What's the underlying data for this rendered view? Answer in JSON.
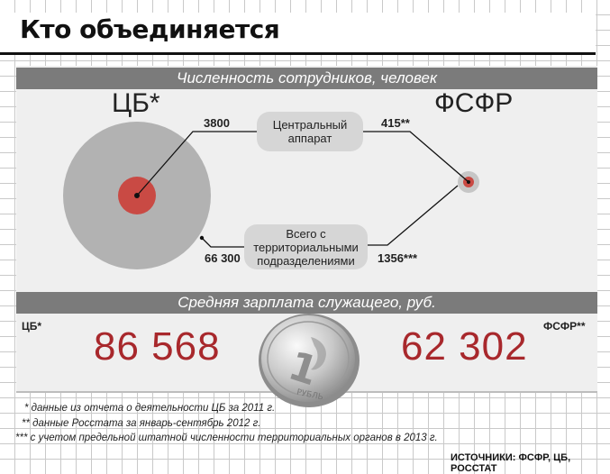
{
  "title": "Кто объединяется",
  "section1": {
    "header": "Численность сотрудников, человек",
    "left_label": "ЦБ*",
    "right_label": "ФСФР",
    "central": {
      "label": "Центральный аппарат",
      "left_value": "3800",
      "right_value": "415**"
    },
    "total": {
      "label": "Всего с территориальными подразделениями",
      "left_value": "66 300",
      "right_value": "1356***"
    }
  },
  "section2": {
    "header": "Средняя зарплата служащего, руб.",
    "left_label": "ЦБ*",
    "left_value": "86 568",
    "right_label": "ФСФР**",
    "right_value": "62 302",
    "coin": {
      "value": "1",
      "text": "РУБЛЬ"
    }
  },
  "footnotes": [
    "* данные из отчета о деятельности ЦБ за 2011 г.",
    "** данные Росстата за январь-сентябрь 2012 г.",
    "*** с учетом предельной штатной численности территориальных органов в 2013 г."
  ],
  "sources": "ИСТОЧНИКИ: ФСФР, ЦБ, РОССТАТ",
  "colors": {
    "accent": "#a8282c",
    "circle_gray": "#b2b2b2",
    "bar": "#7b7b7b",
    "panel": "#efefef"
  }
}
